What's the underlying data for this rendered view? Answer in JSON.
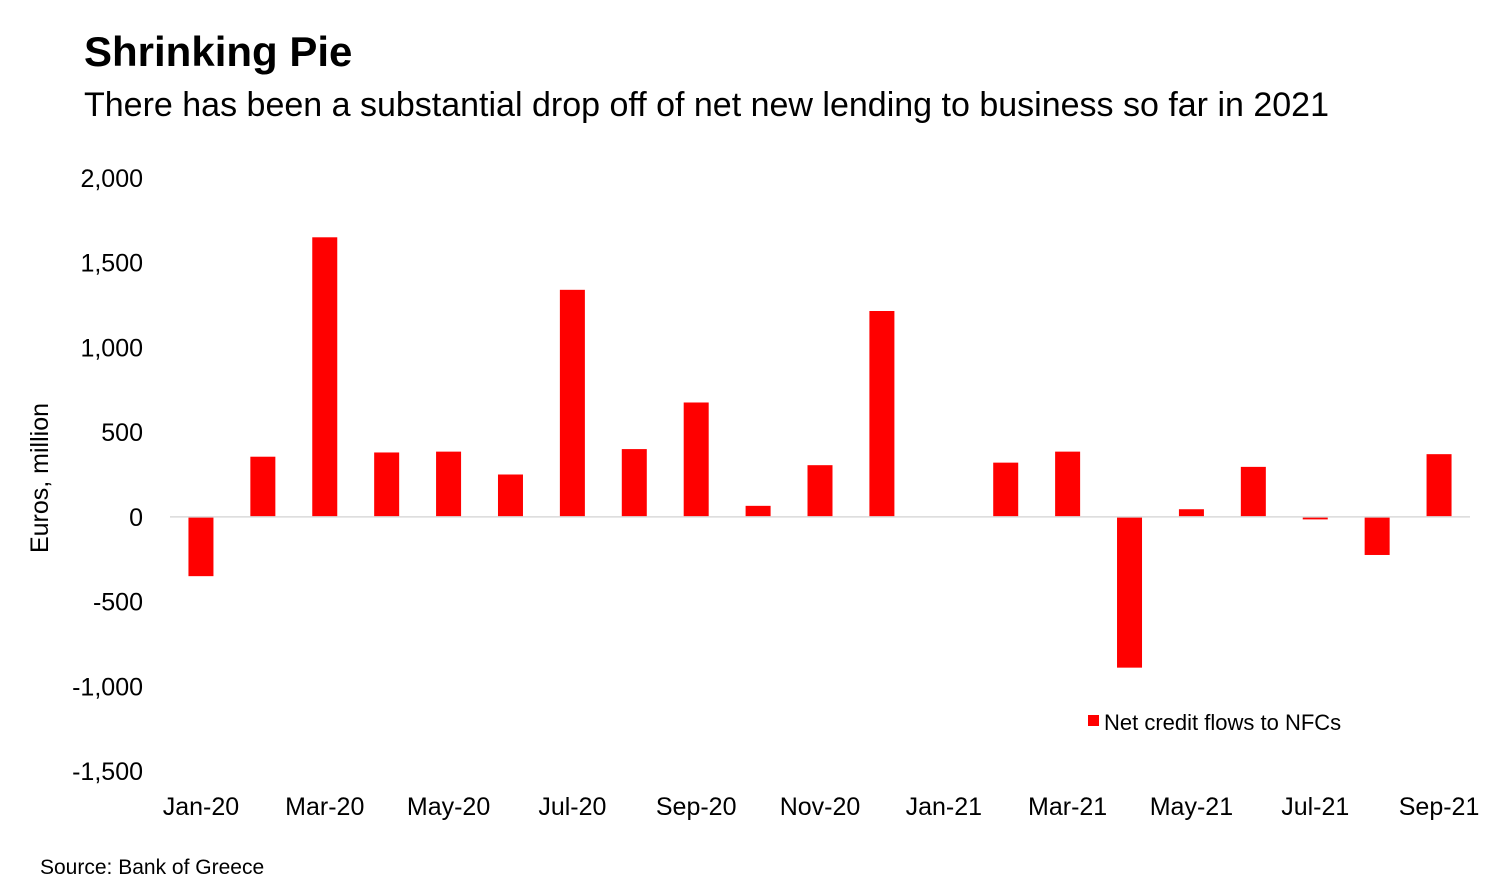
{
  "title": "Shrinking Pie",
  "subtitle": "There has been a substantial drop off of net new lending to business so far in 2021",
  "source": "Source: Bank of Greece",
  "chart_data": {
    "type": "bar",
    "categories": [
      "Jan-20",
      "Feb-20",
      "Mar-20",
      "Apr-20",
      "May-20",
      "Jun-20",
      "Jul-20",
      "Aug-20",
      "Sep-20",
      "Oct-20",
      "Nov-20",
      "Dec-20",
      "Jan-21",
      "Feb-21",
      "Mar-21",
      "Apr-21",
      "May-21",
      "Jun-21",
      "Jul-21",
      "Aug-21",
      "Sep-21"
    ],
    "tick_labels": [
      "Jan-20",
      "Mar-20",
      "May-20",
      "Jul-20",
      "Sep-20",
      "Nov-20",
      "Jan-21",
      "Mar-21",
      "May-21",
      "Jul-21",
      "Sep-21"
    ],
    "series": [
      {
        "name": "Net credit flows to NFCs",
        "color": "#ff0000",
        "values": [
          -350,
          355,
          1650,
          380,
          385,
          250,
          1340,
          400,
          675,
          65,
          305,
          1215,
          0,
          320,
          385,
          -890,
          45,
          295,
          -15,
          -225,
          370
        ]
      }
    ],
    "ylabel": "Euros, million",
    "xlabel": "",
    "ylim": [
      -1500,
      2000
    ],
    "yticks": [
      2000,
      1500,
      1000,
      500,
      0,
      -500,
      -1000,
      -1500
    ],
    "ytick_labels": [
      "2,000",
      "1,500",
      "1,000",
      "500",
      "0",
      "-500",
      "-1,000",
      "-1,500"
    ],
    "grid": false,
    "legend": "bottom-right"
  }
}
